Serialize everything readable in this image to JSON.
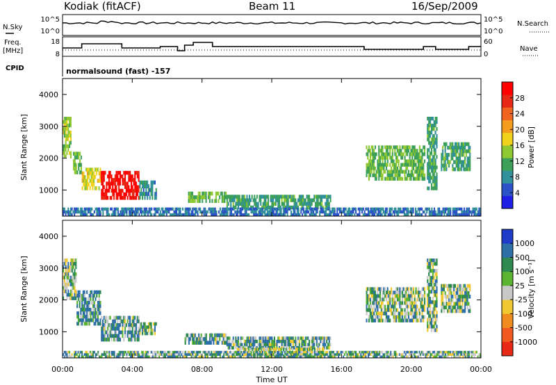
{
  "header": {
    "station": "Kodiak (fitACF)",
    "beam": "Beam 11",
    "date": "16/Sep/2009"
  },
  "summary_panels": {
    "left_labels": {
      "nsky": "N.Sky",
      "freq_line1": "Freq.",
      "freq_line2": "[MHz]",
      "cpid": "CPID"
    },
    "right_labels": {
      "nsearch": "N.Search",
      "nave": "Nave"
    },
    "noise_ticks_left": [
      "10^5",
      "10^0"
    ],
    "noise_ticks_right": [
      "10^5",
      "10^0"
    ],
    "freq_ticks": [
      "18",
      "8"
    ],
    "nave_ticks": [
      "60",
      "0"
    ],
    "cpid_text": "normalsound (fast) -157",
    "freq_steps": [
      {
        "t": 0.0,
        "f": 12
      },
      {
        "t": 1.1,
        "f": 15
      },
      {
        "t": 3.4,
        "f": 12
      },
      {
        "t": 5.6,
        "f": 13
      },
      {
        "t": 6.6,
        "f": 10
      },
      {
        "t": 7.0,
        "f": 14
      },
      {
        "t": 7.5,
        "f": 16
      },
      {
        "t": 8.6,
        "f": 13
      },
      {
        "t": 17.3,
        "f": 11
      },
      {
        "t": 20.7,
        "f": 13
      },
      {
        "t": 21.4,
        "f": 11
      },
      {
        "t": 23.3,
        "f": 13
      }
    ]
  },
  "colorbars": {
    "power": {
      "label": "Power [dB]",
      "ticks": [
        "28",
        "24",
        "20",
        "16",
        "12",
        "8",
        "4"
      ],
      "colors": [
        "#1e1ee6",
        "#2c52c8",
        "#31909a",
        "#3ca05a",
        "#8fc832",
        "#f0d21e",
        "#f59b1e",
        "#f0641e",
        "#e62814",
        "#ff0000"
      ]
    },
    "velocity": {
      "label": "Velocity [m s⁻¹]",
      "ticks": [
        "1000",
        "500",
        "100",
        "25",
        "-25",
        "-100",
        "-500",
        "-1000"
      ],
      "colors": [
        "#1e3cc8",
        "#2f6fa8",
        "#2f8a50",
        "#5ab432",
        "#c8c8c8",
        "#f0c832",
        "#f08c1e",
        "#f05a1e",
        "#e62814"
      ]
    }
  },
  "axes": {
    "ylabel": "Slant Range [km]",
    "yticks": [
      "4000",
      "3000",
      "2000",
      "1000"
    ],
    "xticks": [
      "00:00",
      "04:00",
      "08:00",
      "12:00",
      "16:00",
      "20:00",
      "00:00"
    ],
    "xlabel": "Time UT"
  },
  "chart_data": [
    {
      "type": "heatmap",
      "quantity": "Power",
      "unit": "dB",
      "xlim": [
        0,
        24
      ],
      "ylim": [
        180,
        4500
      ],
      "scale": [
        0,
        30
      ],
      "regions": [
        {
          "t0": 0.0,
          "t1": 0.5,
          "r0": 2000,
          "r1": 3300,
          "value": 14
        },
        {
          "t0": 0.6,
          "t1": 1.1,
          "r0": 1500,
          "r1": 2200,
          "value": 12
        },
        {
          "t0": 1.1,
          "t1": 2.2,
          "r0": 1000,
          "r1": 1700,
          "value": 16
        },
        {
          "t0": 2.2,
          "t1": 4.4,
          "r0": 700,
          "r1": 1600,
          "value": 28
        },
        {
          "t0": 4.4,
          "t1": 5.4,
          "r0": 700,
          "r1": 1300,
          "value": 8
        },
        {
          "t0": 7.2,
          "t1": 9.4,
          "r0": 600,
          "r1": 950,
          "value": 12
        },
        {
          "t0": 9.4,
          "t1": 15.4,
          "r0": 400,
          "r1": 850,
          "value": 10
        },
        {
          "t0": 0.0,
          "t1": 24.0,
          "r0": 180,
          "r1": 450,
          "value": 6
        },
        {
          "t0": 17.4,
          "t1": 20.8,
          "r0": 1300,
          "r1": 2400,
          "value": 12
        },
        {
          "t0": 20.9,
          "t1": 21.5,
          "r0": 1000,
          "r1": 3300,
          "value": 10
        },
        {
          "t0": 21.7,
          "t1": 23.4,
          "r0": 1600,
          "r1": 2500,
          "value": 10
        }
      ]
    },
    {
      "type": "heatmap",
      "quantity": "Velocity",
      "unit": "m s-1",
      "xlim": [
        0,
        24
      ],
      "ylim": [
        180,
        4500
      ],
      "scale": [
        -1000,
        1000
      ],
      "regions": [
        {
          "t0": 0.0,
          "t1": 0.8,
          "r0": 2000,
          "r1": 3300,
          "value": 0
        },
        {
          "t0": 0.8,
          "t1": 2.2,
          "r0": 1200,
          "r1": 2300,
          "value": 90
        },
        {
          "t0": 2.2,
          "t1": 4.4,
          "r0": 700,
          "r1": 1500,
          "value": 60
        },
        {
          "t0": 4.4,
          "t1": 5.4,
          "r0": 900,
          "r1": 1300,
          "value": 0
        },
        {
          "t0": 7.0,
          "t1": 9.4,
          "r0": 600,
          "r1": 950,
          "value": 60
        },
        {
          "t0": 9.4,
          "t1": 15.4,
          "r0": 450,
          "r1": 850,
          "value": 40
        },
        {
          "t0": 10.0,
          "t1": 15.0,
          "r0": 180,
          "r1": 500,
          "value": -70
        },
        {
          "t0": 0.0,
          "t1": 24.0,
          "r0": 180,
          "r1": 400,
          "value": 40
        },
        {
          "t0": 17.4,
          "t1": 20.8,
          "r0": 1300,
          "r1": 2400,
          "value": 0
        },
        {
          "t0": 20.9,
          "t1": 21.5,
          "r0": 1000,
          "r1": 3300,
          "value": 0
        },
        {
          "t0": 21.7,
          "t1": 23.4,
          "r0": 1600,
          "r1": 2500,
          "value": 0
        }
      ]
    }
  ]
}
